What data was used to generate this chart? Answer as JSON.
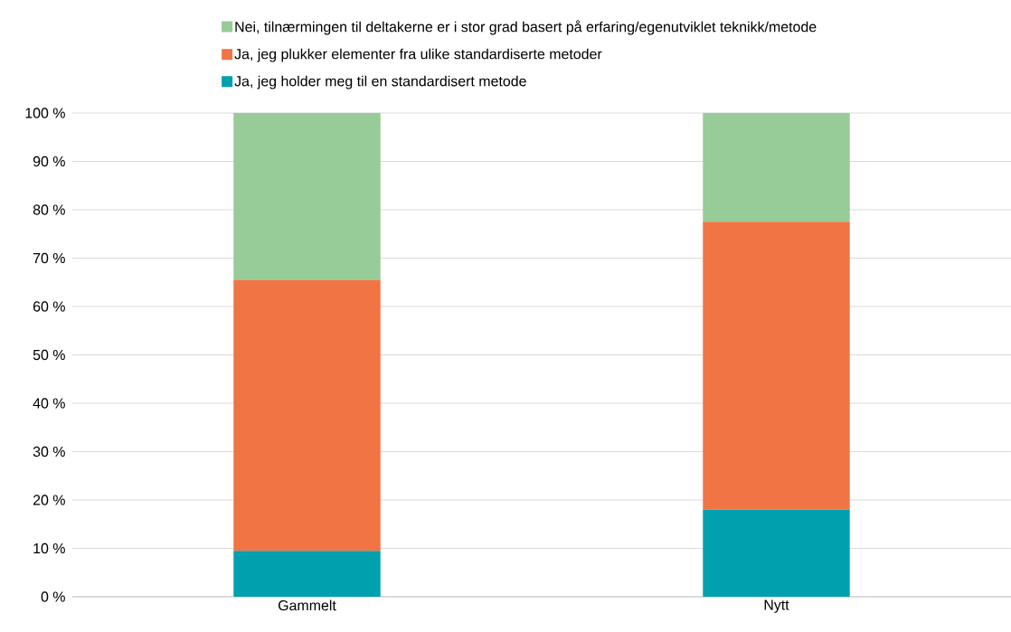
{
  "chart_data": {
    "type": "bar",
    "stacked": true,
    "categories": [
      "Gammelt",
      "Nytt"
    ],
    "series": [
      {
        "name": "Ja, jeg holder meg til en standardisert metode",
        "color": "#00a0ae",
        "values": [
          9.5,
          18
        ]
      },
      {
        "name": "Ja, jeg plukker elementer fra ulike standardiserte metoder",
        "color": "#f07444",
        "values": [
          56,
          59.5
        ]
      },
      {
        "name": "Nei, tilnærmingen til deltakerne er i stor grad basert på erfaring/egenutviklet teknikk/metode",
        "color": "#97cb97",
        "values": [
          34.5,
          22.5
        ]
      }
    ],
    "ylim": [
      0,
      100
    ],
    "yticks": [
      {
        "value": 0,
        "label": "0 %"
      },
      {
        "value": 10,
        "label": "10 %"
      },
      {
        "value": 20,
        "label": "20 %"
      },
      {
        "value": 30,
        "label": "30 %"
      },
      {
        "value": 40,
        "label": "40 %"
      },
      {
        "value": 50,
        "label": "50 %"
      },
      {
        "value": 60,
        "label": "60 %"
      },
      {
        "value": 70,
        "label": "70 %"
      },
      {
        "value": 80,
        "label": "80 %"
      },
      {
        "value": 90,
        "label": "90 %"
      },
      {
        "value": 100,
        "label": "100 %"
      }
    ],
    "grid": "y",
    "legend": "top"
  }
}
